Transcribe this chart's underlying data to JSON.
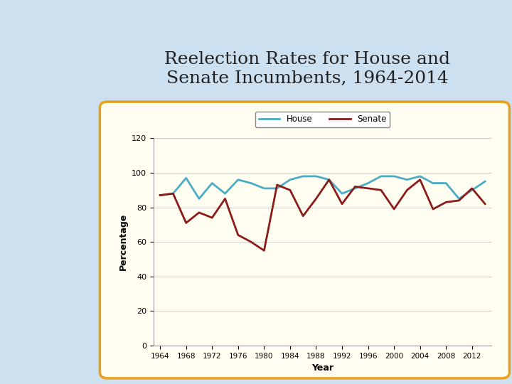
{
  "title": "Reelection Rates for House and\nSenate Incumbents, 1964‑2014",
  "years": [
    1964,
    1966,
    1968,
    1970,
    1972,
    1974,
    1976,
    1978,
    1980,
    1982,
    1984,
    1986,
    1988,
    1990,
    1992,
    1994,
    1996,
    1998,
    2000,
    2002,
    2004,
    2006,
    2008,
    2010,
    2012,
    2014
  ],
  "house": [
    87,
    88,
    97,
    85,
    94,
    88,
    96,
    94,
    91,
    91,
    96,
    98,
    98,
    96,
    88,
    91,
    94,
    98,
    98,
    96,
    98,
    94,
    94,
    85,
    90,
    95
  ],
  "senate": [
    87,
    88,
    71,
    77,
    74,
    85,
    64,
    60,
    55,
    93,
    90,
    75,
    85,
    96,
    82,
    92,
    91,
    90,
    79,
    90,
    96,
    79,
    83,
    84,
    91,
    82
  ],
  "house_color": "#4bacc6",
  "senate_color": "#8b1a1a",
  "xlabel": "Year",
  "ylabel": "Percentage",
  "ylim": [
    0,
    120
  ],
  "yticks": [
    0,
    20,
    40,
    60,
    80,
    100,
    120
  ],
  "xtick_years": [
    1964,
    1968,
    1972,
    1976,
    1980,
    1984,
    1988,
    1992,
    1996,
    2000,
    2004,
    2008,
    2012
  ],
  "bg_color": "#fffef0",
  "outer_bg": "#cce0f0",
  "border_color": "#e8a020",
  "line_width": 2.0,
  "title_fontsize": 18,
  "axis_label_fontsize": 9
}
